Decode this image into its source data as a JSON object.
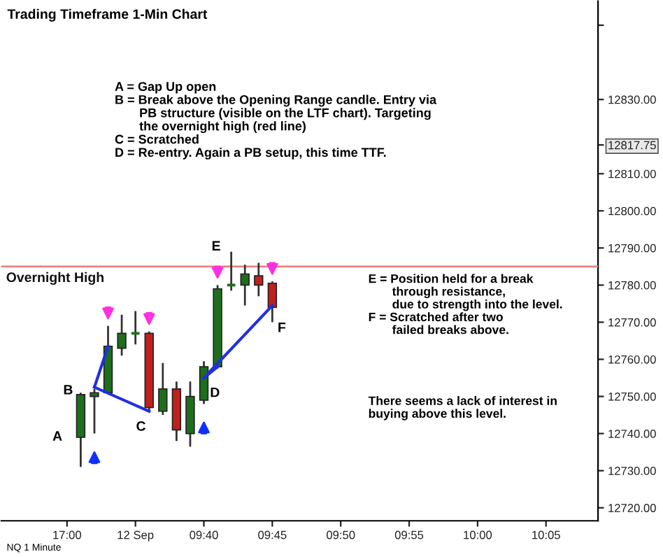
{
  "chart_data": {
    "type": "candlestick",
    "title": "Trading Timeframe 1-Min Chart",
    "categories": [
      null,
      null,
      null,
      null,
      "17:00",
      null,
      null,
      null,
      null,
      "12 Sep",
      null,
      null,
      null,
      null,
      "09:40",
      null,
      null,
      null,
      null,
      "09:45",
      null,
      null,
      null,
      null,
      "09:50",
      null,
      null,
      null,
      null,
      "09:55",
      null,
      null,
      null,
      null,
      "10:00",
      null,
      null,
      null,
      null,
      "10:05",
      null,
      null,
      null
    ],
    "ohlc": [
      null,
      null,
      null,
      null,
      null,
      [
        12739,
        12751,
        12731,
        12750.5
      ],
      [
        12750,
        12752,
        12740,
        12751
      ],
      [
        12751,
        12769,
        12751,
        12763.5
      ],
      [
        12763,
        12772,
        12761,
        12767
      ],
      [
        12767,
        12773,
        12764,
        12767
      ],
      [
        12767,
        12767.5,
        12746,
        12747
      ],
      [
        12746,
        12759,
        12745,
        12752
      ],
      [
        12752,
        12754,
        12738,
        12741
      ],
      [
        12740,
        12754,
        12736.5,
        12750
      ],
      [
        12749,
        12759.5,
        12748,
        12758
      ],
      [
        12758,
        12780,
        12757.5,
        12779
      ],
      [
        12780,
        12789,
        12778.5,
        12779.5
      ],
      [
        12780,
        12785.5,
        12774.5,
        12783
      ],
      [
        12782.5,
        12786,
        12777,
        12780
      ],
      [
        12780.5,
        12781,
        12770,
        12774
      ],
      null,
      null,
      null,
      null,
      null,
      null,
      null,
      null,
      null,
      null,
      null,
      null,
      null,
      null,
      null,
      null,
      null,
      null,
      null,
      null,
      null,
      null,
      null
    ],
    "colors": [
      null,
      null,
      null,
      null,
      null,
      "#1e6e1e",
      "#1e6e1e",
      "#1e6e1e",
      "#1e6e1e",
      "#1e6e1e",
      "#c0201e",
      "#1e6e1e",
      "#c0201e",
      "#1e6e1e",
      "#1e6e1e",
      "#1e6e1e",
      "#1e6e1e",
      "#1e6e1e",
      "#c0201e",
      "#c0201e",
      null,
      null,
      null,
      null,
      null,
      null,
      null,
      null,
      null,
      null,
      null,
      null,
      null,
      null,
      null,
      null,
      null,
      null,
      null,
      null,
      null,
      null,
      null
    ],
    "series": [
      {
        "type": "line",
        "color": "#2030e0",
        "values": [
          null,
          null,
          null,
          null,
          null,
          null,
          12752.5,
          12763.5,
          null,
          null,
          null,
          null,
          null,
          null,
          null,
          null,
          null,
          null,
          null,
          null,
          null,
          null,
          null,
          null,
          null,
          null,
          null,
          null,
          null,
          null,
          null,
          null,
          null,
          null,
          null,
          null,
          null,
          null,
          null,
          null,
          null,
          null,
          null
        ]
      },
      {
        "type": "line",
        "color": "#2030e0",
        "values": [
          null,
          null,
          null,
          null,
          null,
          null,
          12752.5,
          null,
          null,
          null,
          12746,
          null,
          null,
          null,
          null,
          null,
          null,
          null,
          null,
          null,
          null,
          null,
          null,
          null,
          null,
          null,
          null,
          null,
          null,
          null,
          null,
          null,
          null,
          null,
          null,
          null,
          null,
          null,
          null,
          null,
          null,
          null,
          null
        ]
      },
      {
        "type": "line",
        "color": "#2030e0",
        "values": [
          null,
          null,
          null,
          null,
          null,
          null,
          null,
          null,
          null,
          null,
          null,
          null,
          null,
          null,
          12755,
          12758,
          null,
          null,
          null,
          null,
          null,
          null,
          null,
          null,
          null,
          null,
          null,
          null,
          null,
          null,
          null,
          null,
          null,
          null,
          null,
          null,
          null,
          null,
          null,
          null,
          null,
          null,
          null
        ]
      },
      {
        "type": "line",
        "color": "#2030e0",
        "values": [
          null,
          null,
          null,
          null,
          null,
          null,
          null,
          null,
          null,
          null,
          null,
          null,
          null,
          null,
          12755,
          null,
          null,
          null,
          null,
          12774.5,
          null,
          null,
          null,
          null,
          null,
          null,
          null,
          null,
          null,
          null,
          null,
          null,
          null,
          null,
          null,
          null,
          null,
          null,
          null,
          null,
          null,
          null,
          null
        ]
      }
    ],
    "ylim": [
      12716.5,
      12856.5
    ],
    "yticks": [
      {
        "value": 12720,
        "label": "12720.00"
      },
      {
        "value": 12730,
        "label": "12730.00"
      },
      {
        "value": 12740,
        "label": "12740.00"
      },
      {
        "value": 12750,
        "label": "12750.00"
      },
      {
        "value": 12760,
        "label": "12760.00"
      },
      {
        "value": 12770,
        "label": "12770.00"
      },
      {
        "value": 12780,
        "label": "12780.00"
      },
      {
        "value": 12790,
        "label": "12790.00"
      },
      {
        "value": 12800,
        "label": "12800.00"
      },
      {
        "value": 12810,
        "label": "12810.00"
      },
      {
        "value": 12817.75,
        "label": "12817.75"
      },
      {
        "value": 12830,
        "label": "12830.00"
      },
      {
        "value": 12850,
        "label": null
      }
    ],
    "ref_lines": [
      {
        "axis": "y",
        "value": 12785,
        "label": "Overnight High",
        "color": "#f08080"
      }
    ],
    "annotations": [
      "A",
      "B",
      "C",
      "D",
      "E",
      "F",
      "A = Gap Up open\nB = Break above the Opening Range candle. Entry via\n       PB structure (visible on the LTF chart). Targeting\n       the overnight high (red line)\nC = Scratched\nD = Re-entry. Again a PB setup, this time TTF.",
      "E = Position held for a break\n       through resistance,\n       due to strength into the level.\nF = Scratched after two\n       failed breaks above.",
      "There seems a lack of interest in\nbuying above this level.",
      "NQ 1 Minute"
    ],
    "grid": false
  }
}
